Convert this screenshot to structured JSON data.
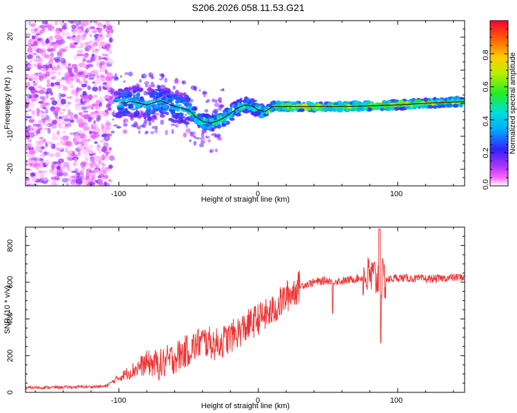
{
  "title": "S206.2026.058.11.53.G21",
  "chart_data": [
    {
      "type": "heatmap",
      "xlabel": "Height of straight line (km)",
      "ylabel": "Frequency (Hz)",
      "xlim": [
        -167,
        148
      ],
      "ylim": [
        -25,
        25
      ],
      "xticks": [
        -100,
        0,
        100
      ],
      "yticks": [
        -20,
        -10,
        0,
        10,
        20
      ],
      "colorbar": {
        "label": "Normalized spectral amplitude",
        "ticks": [
          "0.0",
          "0.2",
          "0.4",
          "0.6",
          "0.8"
        ],
        "tick_values": [
          0.0,
          0.2,
          0.4,
          0.6,
          0.8
        ],
        "range": [
          0,
          1
        ]
      },
      "ridge": {
        "x": [
          -100,
          -90,
          -80,
          -70,
          -60,
          -50,
          -45,
          -40,
          -35,
          -30,
          -25,
          -20,
          -15,
          -10,
          -5,
          0,
          5,
          10,
          20,
          40,
          60,
          80,
          100,
          120,
          148
        ],
        "y": [
          0,
          0.5,
          -0.5,
          0.8,
          -1,
          -2,
          -4,
          -5.5,
          -6,
          -5.5,
          -4.5,
          -3,
          -1.5,
          -0.5,
          -0.8,
          -2,
          -2.5,
          -1,
          -1,
          -1,
          -1,
          -0.8,
          -0.5,
          0,
          0.5
        ]
      }
    },
    {
      "type": "line",
      "xlabel": "Height of straight line (km)",
      "ylabel": "SNR (10 * v/v)",
      "xlim": [
        -167,
        148
      ],
      "ylim": [
        0,
        900
      ],
      "xticks": [
        -100,
        0,
        100
      ],
      "yticks": [
        0,
        200,
        400,
        600,
        800
      ],
      "series": [
        {
          "name": "SNR",
          "color": "#ee3333",
          "x": [
            -167,
            -140,
            -110,
            -100,
            -90,
            -80,
            -70,
            -60,
            -50,
            -40,
            -30,
            -20,
            -10,
            0,
            10,
            20,
            30,
            40,
            50,
            60,
            70,
            80,
            90,
            100,
            110,
            120,
            130,
            140,
            148
          ],
          "y": [
            25,
            28,
            32,
            80,
            120,
            160,
            150,
            190,
            230,
            280,
            260,
            300,
            350,
            400,
            440,
            520,
            580,
            600,
            610,
            605,
            620,
            630,
            610,
            625,
            620,
            618,
            620,
            625,
            628
          ]
        }
      ]
    }
  ]
}
